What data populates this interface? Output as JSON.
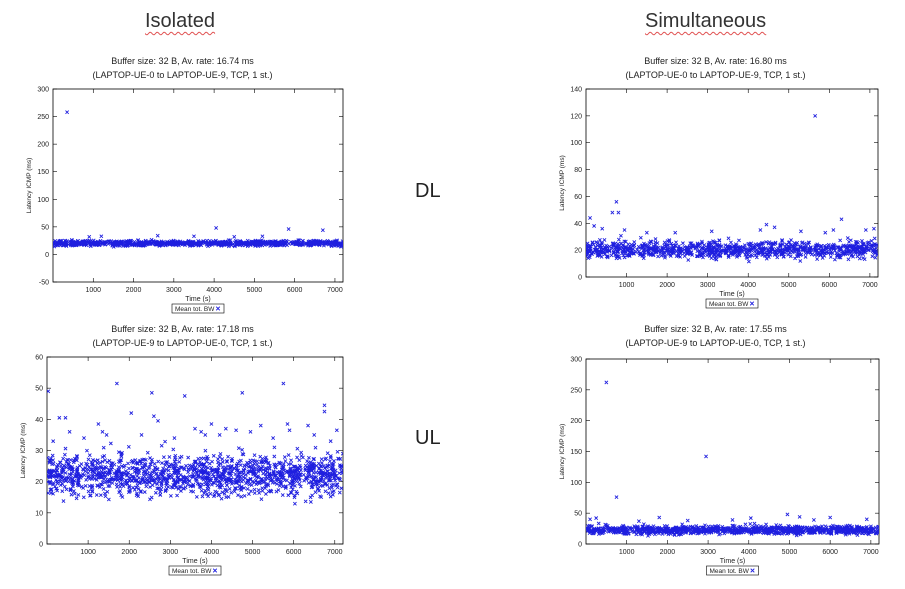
{
  "headers": {
    "left": "Isolated",
    "right": "Simultaneous"
  },
  "row_labels": {
    "top": "DL",
    "bottom": "UL"
  },
  "colors": {
    "points": "#1f1fdf",
    "axis": "#000000",
    "background": "#ffffff"
  },
  "chart_data": [
    {
      "id": "dl-isolated",
      "type": "scatter",
      "title": "Buffer size: 32 B, Av. rate: 16.74 ms",
      "subtitle": "(LAPTOP-UE-0 to LAPTOP-UE-9, TCP, 1 st.)",
      "xlabel": "Time (s)",
      "ylabel": "Latency ICMP (ms)",
      "xlim": [
        0,
        7200
      ],
      "ylim": [
        -50,
        300
      ],
      "xticks": [
        1000,
        2000,
        3000,
        4000,
        5000,
        6000,
        7000
      ],
      "yticks": [
        -50,
        0,
        50,
        100,
        150,
        200,
        250,
        300
      ],
      "legend": "Mean tot. BW",
      "series": [
        {
          "name": "Mean tot. BW",
          "band": {
            "min": 13,
            "max": 27,
            "density": 900
          },
          "outliers": [
            [
              350,
              258
            ],
            [
              4050,
              48
            ],
            [
              5850,
              46
            ],
            [
              6700,
              44
            ],
            [
              1200,
              33
            ],
            [
              2600,
              34
            ],
            [
              3500,
              33
            ],
            [
              4500,
              32
            ],
            [
              5200,
              33
            ],
            [
              900,
              32
            ]
          ]
        }
      ]
    },
    {
      "id": "dl-simultaneous",
      "type": "scatter",
      "title": "Buffer size: 32 B, Av. rate: 16.80 ms",
      "subtitle": "(LAPTOP-UE-0 to LAPTOP-UE-9, TCP, 1 st.)",
      "xlabel": "Time (s)",
      "ylabel": "Latency ICMP (ms)",
      "xlim": [
        0,
        7200
      ],
      "ylim": [
        0,
        140
      ],
      "xticks": [
        1000,
        2000,
        3000,
        4000,
        5000,
        6000,
        7000
      ],
      "yticks": [
        0,
        20,
        40,
        60,
        80,
        100,
        120,
        140
      ],
      "legend": "Mean tot. BW",
      "series": [
        {
          "name": "Mean tot. BW",
          "band": {
            "min": 11,
            "max": 29,
            "density": 1000
          },
          "outliers": [
            [
              5650,
              120
            ],
            [
              750,
              56
            ],
            [
              650,
              48
            ],
            [
              800,
              48
            ],
            [
              100,
              44
            ],
            [
              6300,
              43
            ],
            [
              4450,
              39
            ],
            [
              4650,
              37
            ],
            [
              6100,
              35
            ],
            [
              950,
              35
            ],
            [
              2200,
              33
            ],
            [
              3100,
              34
            ],
            [
              1500,
              33
            ],
            [
              5300,
              34
            ],
            [
              6900,
              35
            ],
            [
              7100,
              36
            ],
            [
              200,
              38
            ],
            [
              400,
              36
            ],
            [
              4300,
              35
            ],
            [
              5900,
              33
            ]
          ]
        }
      ]
    },
    {
      "id": "ul-isolated",
      "type": "scatter",
      "title": "Buffer size: 32 B, Av. rate: 17.18 ms",
      "subtitle": "(LAPTOP-UE-9 to LAPTOP-UE-0, TCP, 1 st.)",
      "xlabel": "Time (s)",
      "ylabel": "Latency ICMP (ms)",
      "xlim": [
        0,
        7200
      ],
      "ylim": [
        0,
        60
      ],
      "xticks": [
        1000,
        2000,
        3000,
        4000,
        5000,
        6000,
        7000
      ],
      "yticks": [
        0,
        10,
        20,
        30,
        40,
        50,
        60
      ],
      "legend": "Mean tot. BW",
      "series": [
        {
          "name": "Mean tot. BW",
          "band": {
            "min": 12.5,
            "max": 31,
            "density": 1400
          },
          "outliers": [
            [
              30,
              49
            ],
            [
              300,
              40.5
            ],
            [
              450,
              40.5
            ],
            [
              1700,
              51.5
            ],
            [
              2550,
              48.5
            ],
            [
              2600,
              41
            ],
            [
              2050,
              42
            ],
            [
              3350,
              47.5
            ],
            [
              4750,
              48.5
            ],
            [
              5750,
              51.5
            ],
            [
              6750,
              44.5
            ],
            [
              6750,
              42.5
            ],
            [
              7050,
              36.5
            ],
            [
              5850,
              38.5
            ],
            [
              5900,
              36.5
            ],
            [
              1250,
              38.5
            ],
            [
              1350,
              36
            ],
            [
              2700,
              39.5
            ],
            [
              3600,
              37
            ],
            [
              4000,
              38.5
            ],
            [
              4350,
              37
            ],
            [
              4600,
              36.5
            ],
            [
              5200,
              38
            ],
            [
              6350,
              38
            ],
            [
              1450,
              35
            ],
            [
              3850,
              35
            ],
            [
              550,
              36
            ],
            [
              150,
              33
            ],
            [
              900,
              34
            ],
            [
              2300,
              35
            ],
            [
              3100,
              34
            ],
            [
              3750,
              36
            ],
            [
              4950,
              36
            ],
            [
              6500,
              35
            ],
            [
              6900,
              33
            ],
            [
              5500,
              34
            ],
            [
              4200,
              35
            ]
          ]
        }
      ]
    },
    {
      "id": "ul-simultaneous",
      "type": "scatter",
      "title": "Buffer size: 32 B, Av. rate: 17.55 ms",
      "subtitle": "(LAPTOP-UE-9 to LAPTOP-UE-0, TCP, 1 st.)",
      "xlabel": "Time (s)",
      "ylabel": "Latency ICMP (ms)",
      "xlim": [
        0,
        7200
      ],
      "ylim": [
        0,
        300
      ],
      "xticks": [
        1000,
        2000,
        3000,
        4000,
        5000,
        6000,
        7000
      ],
      "yticks": [
        0,
        50,
        100,
        150,
        200,
        250,
        300
      ],
      "legend": "Mean tot. BW",
      "series": [
        {
          "name": "Mean tot. BW",
          "band": {
            "min": 12,
            "max": 32,
            "density": 1000
          },
          "outliers": [
            [
              500,
              262
            ],
            [
              2950,
              142
            ],
            [
              750,
              76
            ],
            [
              4950,
              48
            ],
            [
              5250,
              44
            ],
            [
              4050,
              42
            ],
            [
              1800,
              43
            ],
            [
              6000,
              43
            ],
            [
              250,
              42
            ],
            [
              100,
              40
            ],
            [
              6900,
              40
            ],
            [
              3600,
              39
            ],
            [
              5600,
              39
            ],
            [
              2500,
              38
            ],
            [
              1300,
              37
            ]
          ]
        }
      ]
    }
  ]
}
